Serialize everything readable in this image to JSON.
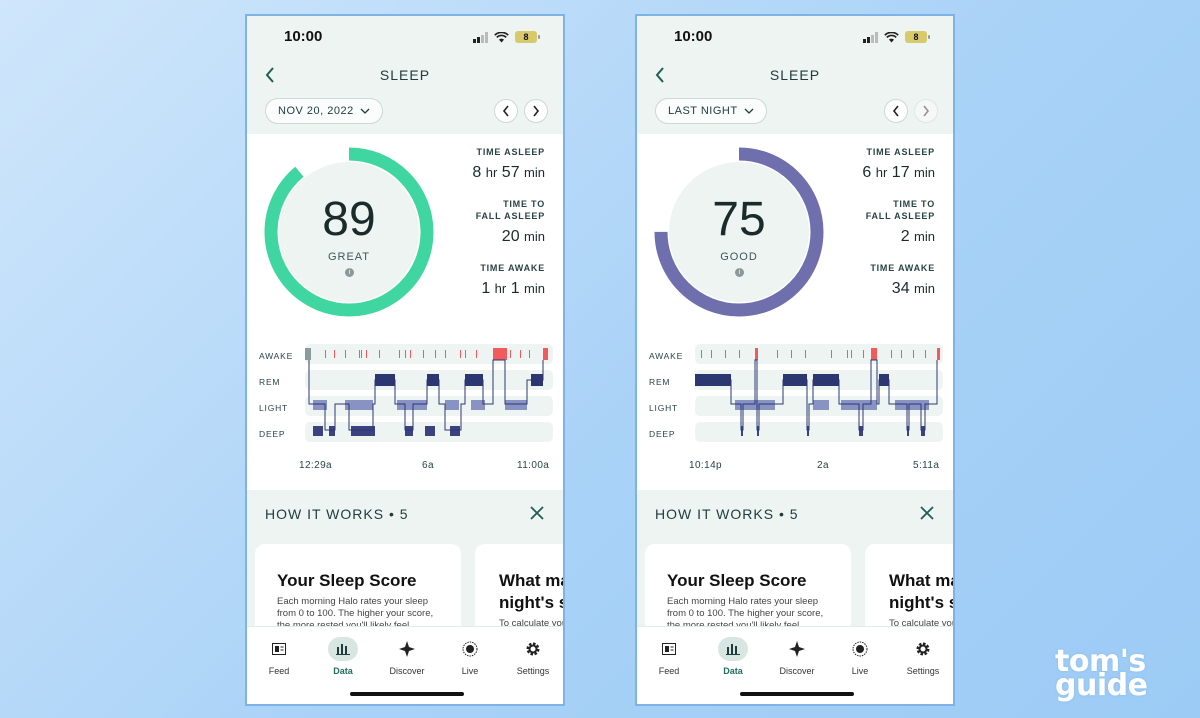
{
  "watermark": {
    "line1": "tom's",
    "line2": "guide"
  },
  "colors": {
    "green_ring": "#3fd6a2",
    "purple_ring": "#6f6fae",
    "awake_mark": "#f15b5b",
    "stage_line": "#2c3772",
    "light_fill": "#8893c4"
  },
  "screens": [
    {
      "status": {
        "time": "10:00",
        "battery": "8"
      },
      "title": "SLEEP",
      "date_label": "NOV 20, 2022",
      "score": {
        "value": "89",
        "label": "GREAT",
        "fraction": 0.89
      },
      "stats": {
        "time_asleep_label": "TIME ASLEEP",
        "time_asleep_h": "8",
        "time_asleep_m": "57",
        "fall_asleep_label1": "TIME TO",
        "fall_asleep_label2": "FALL ASLEEP",
        "fall_asleep_m": "20",
        "time_awake_label": "TIME AWAKE",
        "time_awake_h": "1",
        "time_awake_m": "1"
      },
      "units": {
        "hr": "hr",
        "min": "min"
      },
      "stages": [
        "AWAKE",
        "REM",
        "LIGHT",
        "DEEP"
      ],
      "time_ticks": [
        "12:29a",
        "6a",
        "11:00a"
      ],
      "how_it_works": {
        "title": "HOW IT WORKS • 5"
      },
      "cards": [
        {
          "title": "Your Sleep Score",
          "body": "Each morning Halo rates your sleep from 0 to 100. The higher your score, the more rested you'll likely feel."
        },
        {
          "title": "What ma night's s",
          "body": "To calculate you"
        }
      ],
      "tabs": [
        "Feed",
        "Data",
        "Discover",
        "Live",
        "Settings"
      ]
    },
    {
      "status": {
        "time": "10:00",
        "battery": "8"
      },
      "title": "SLEEP",
      "date_label": "LAST NIGHT",
      "score": {
        "value": "75",
        "label": "GOOD",
        "fraction": 0.75
      },
      "stats": {
        "time_asleep_label": "TIME ASLEEP",
        "time_asleep_h": "6",
        "time_asleep_m": "17",
        "fall_asleep_label1": "TIME TO",
        "fall_asleep_label2": "FALL ASLEEP",
        "fall_asleep_m": "2",
        "time_awake_label": "TIME AWAKE",
        "time_awake_m": "34"
      },
      "units": {
        "hr": "hr",
        "min": "min"
      },
      "stages": [
        "AWAKE",
        "REM",
        "LIGHT",
        "DEEP"
      ],
      "time_ticks": [
        "10:14p",
        "2a",
        "5:11a"
      ],
      "how_it_works": {
        "title": "HOW IT WORKS • 5"
      },
      "cards": [
        {
          "title": "Your Sleep Score",
          "body": "Each morning Halo rates your sleep from 0 to 100. The higher your score, the more rested you'll likely feel."
        },
        {
          "title": "What ma night's s",
          "body": "To calculate you"
        }
      ],
      "tabs": [
        "Feed",
        "Data",
        "Discover",
        "Live",
        "Settings"
      ]
    }
  ]
}
